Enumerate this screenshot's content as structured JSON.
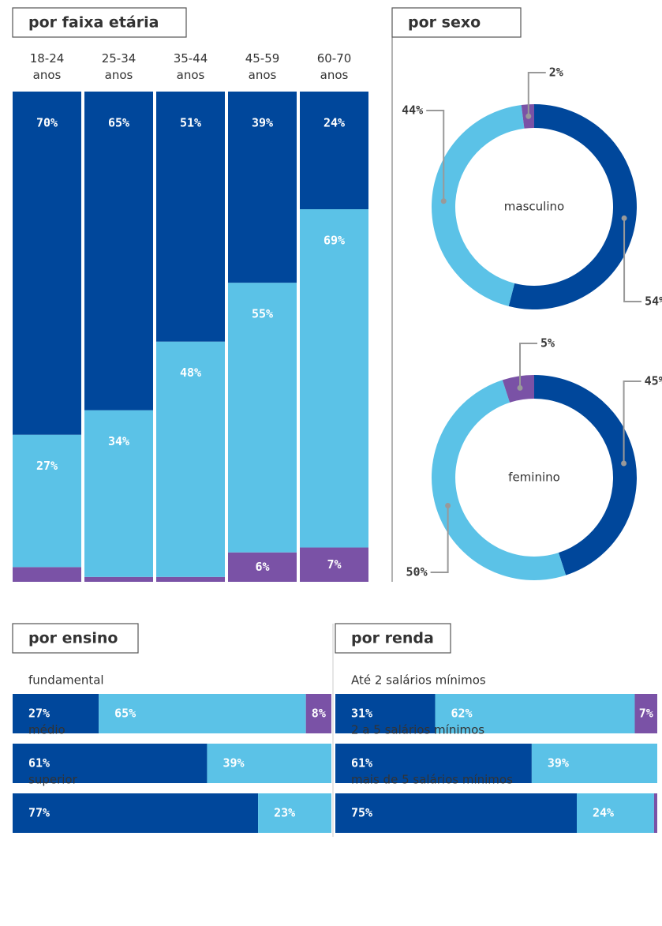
{
  "chart_data": [
    {
      "type": "stacked-bar",
      "title": "por faixa etária",
      "categories": [
        "18-24 anos",
        "25-34 anos",
        "35-44 anos",
        "45-59 anos",
        "60-70 anos"
      ],
      "ylim": [
        0,
        100
      ],
      "series": [
        {
          "color": "#00479b",
          "values": [
            70,
            65,
            51,
            39,
            24
          ],
          "value_labels": [
            "70%",
            "65%",
            "51%",
            "39%",
            "24%"
          ]
        },
        {
          "color": "#5bc2e7",
          "values": [
            27,
            34,
            48,
            55,
            69
          ],
          "value_labels": [
            "27%",
            "34%",
            "48%",
            "55%",
            "69%"
          ]
        },
        {
          "color": "#7a52a6",
          "values": [
            3,
            1,
            1,
            6,
            7
          ],
          "value_labels": [
            null,
            null,
            null,
            "6%",
            "7%"
          ]
        }
      ]
    },
    {
      "type": "donut",
      "title": "por sexo",
      "center_label": "masculino",
      "values": [
        54,
        44,
        2
      ],
      "value_labels": [
        "54%",
        "44%",
        "2%"
      ],
      "colors": [
        "#00479b",
        "#5bc2e7",
        "#7a52a6"
      ]
    },
    {
      "type": "donut",
      "center_label": "feminino",
      "values": [
        45,
        50,
        5
      ],
      "value_labels": [
        "45%",
        "50%",
        "5%"
      ],
      "colors": [
        "#00479b",
        "#5bc2e7",
        "#7a52a6"
      ]
    },
    {
      "type": "stacked-barh",
      "title": "por ensino",
      "categories": [
        "fundamental",
        "médio",
        "superior"
      ],
      "xlim": [
        0,
        100
      ],
      "series": [
        {
          "color": "#00479b",
          "values": [
            27,
            61,
            77
          ],
          "value_labels": [
            "27%",
            "61%",
            "77%"
          ]
        },
        {
          "color": "#5bc2e7",
          "values": [
            65,
            39,
            23
          ],
          "value_labels": [
            "65%",
            "39%",
            "23%"
          ]
        },
        {
          "color": "#7a52a6",
          "values": [
            8,
            null,
            null
          ],
          "value_labels": [
            "8%",
            null,
            null
          ]
        }
      ]
    },
    {
      "type": "stacked-barh",
      "title": "por renda",
      "categories": [
        "Até 2 salários mínimos",
        "2 a 5 salários mínimos",
        "mais de 5 salários mínimos"
      ],
      "xlim": [
        0,
        100
      ],
      "series": [
        {
          "color": "#00479b",
          "values": [
            31,
            61,
            75
          ],
          "value_labels": [
            "31%",
            "61%",
            "75%"
          ]
        },
        {
          "color": "#5bc2e7",
          "values": [
            62,
            39,
            24
          ],
          "value_labels": [
            "62%",
            "39%",
            "24%"
          ]
        },
        {
          "color": "#7a52a6",
          "values": [
            7,
            null,
            1
          ],
          "value_labels": [
            "7%",
            null,
            null
          ]
        }
      ]
    }
  ]
}
